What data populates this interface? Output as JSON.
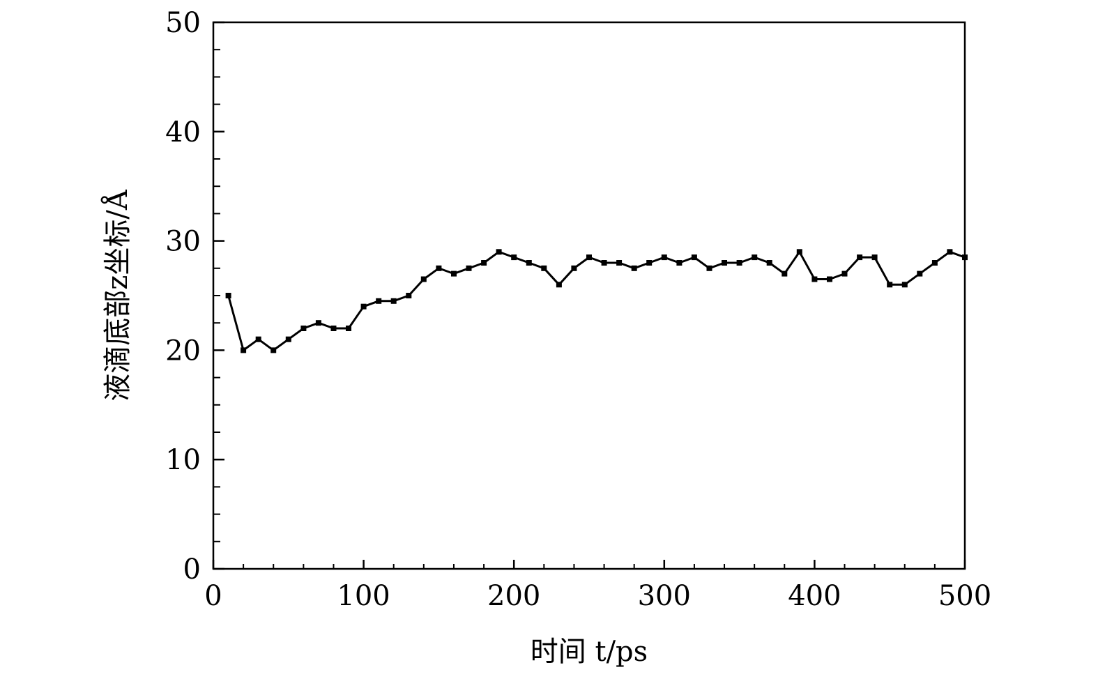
{
  "chart_data": {
    "type": "line",
    "title": "",
    "xlabel": "时间 t/ps",
    "ylabel": "液滴底部z坐标/Å",
    "xlim": [
      0,
      500
    ],
    "ylim": [
      0,
      50
    ],
    "x_ticks": [
      0,
      100,
      200,
      300,
      400,
      500
    ],
    "x_tick_labels": [
      "0",
      "100",
      "200",
      "300",
      "400",
      "500"
    ],
    "y_ticks": [
      0,
      10,
      20,
      30,
      40,
      50
    ],
    "y_tick_labels": [
      "0",
      "10",
      "20",
      "30",
      "40",
      "50"
    ],
    "grid": false,
    "legend": "none",
    "marker": "square",
    "color": "#000000",
    "series": [
      {
        "x": [
          10,
          20,
          30,
          40,
          50,
          60,
          70,
          80,
          90,
          100,
          110,
          120,
          130,
          140,
          150,
          160,
          170,
          180,
          190,
          200,
          210,
          220,
          230,
          240,
          250,
          260,
          270,
          280,
          290,
          300,
          310,
          320,
          330,
          340,
          350,
          360,
          370,
          380,
          390,
          400,
          410,
          420,
          430,
          440,
          450,
          460,
          470,
          480,
          490,
          500
        ],
        "values": [
          25.0,
          20.0,
          21.0,
          20.0,
          21.0,
          22.0,
          22.5,
          22.0,
          22.0,
          24.0,
          24.5,
          24.5,
          25.0,
          26.5,
          27.5,
          27.0,
          27.5,
          28.0,
          29.0,
          28.5,
          28.0,
          27.5,
          26.0,
          27.5,
          28.5,
          28.0,
          28.0,
          27.5,
          28.0,
          28.5,
          28.0,
          28.5,
          27.5,
          28.0,
          28.0,
          28.5,
          28.0,
          27.0,
          29.0,
          26.5,
          26.5,
          27.0,
          28.5,
          28.5,
          26.0,
          26.0,
          27.0,
          28.0,
          29.0,
          28.5
        ]
      }
    ]
  }
}
